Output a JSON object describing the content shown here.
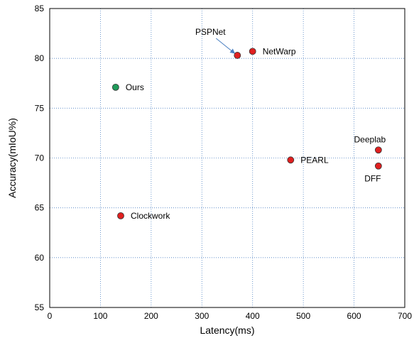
{
  "chart_data": {
    "type": "scatter",
    "xlabel": "Latency(ms)",
    "ylabel": "Accuracy(mIoU%)",
    "xlim": [
      0,
      700
    ],
    "ylim": [
      55,
      85
    ],
    "x_ticks": [
      0,
      100,
      200,
      300,
      400,
      500,
      600,
      700
    ],
    "y_ticks": [
      55,
      60,
      65,
      70,
      75,
      80,
      85
    ],
    "grid": true,
    "grid_style": "dotted",
    "grid_color": "#4a7fc1",
    "points": [
      {
        "label": "Ours",
        "x": 130,
        "y": 77.1,
        "color": "#1f9a5a",
        "label_pos": "right"
      },
      {
        "label": "Clockwork",
        "x": 140,
        "y": 64.2,
        "color": "#e02020",
        "label_pos": "right"
      },
      {
        "label": "PSPNet",
        "x": 370,
        "y": 80.3,
        "color": "#e02020",
        "label_pos": "above-left-arrow"
      },
      {
        "label": "NetWarp",
        "x": 400,
        "y": 80.7,
        "color": "#e02020",
        "label_pos": "right"
      },
      {
        "label": "PEARL",
        "x": 475,
        "y": 69.8,
        "color": "#e02020",
        "label_pos": "right"
      },
      {
        "label": "Deeplab",
        "x": 648,
        "y": 70.8,
        "color": "#e02020",
        "label_pos": "above"
      },
      {
        "label": "DFF",
        "x": 648,
        "y": 69.2,
        "color": "#e02020",
        "label_pos": "below"
      }
    ]
  }
}
